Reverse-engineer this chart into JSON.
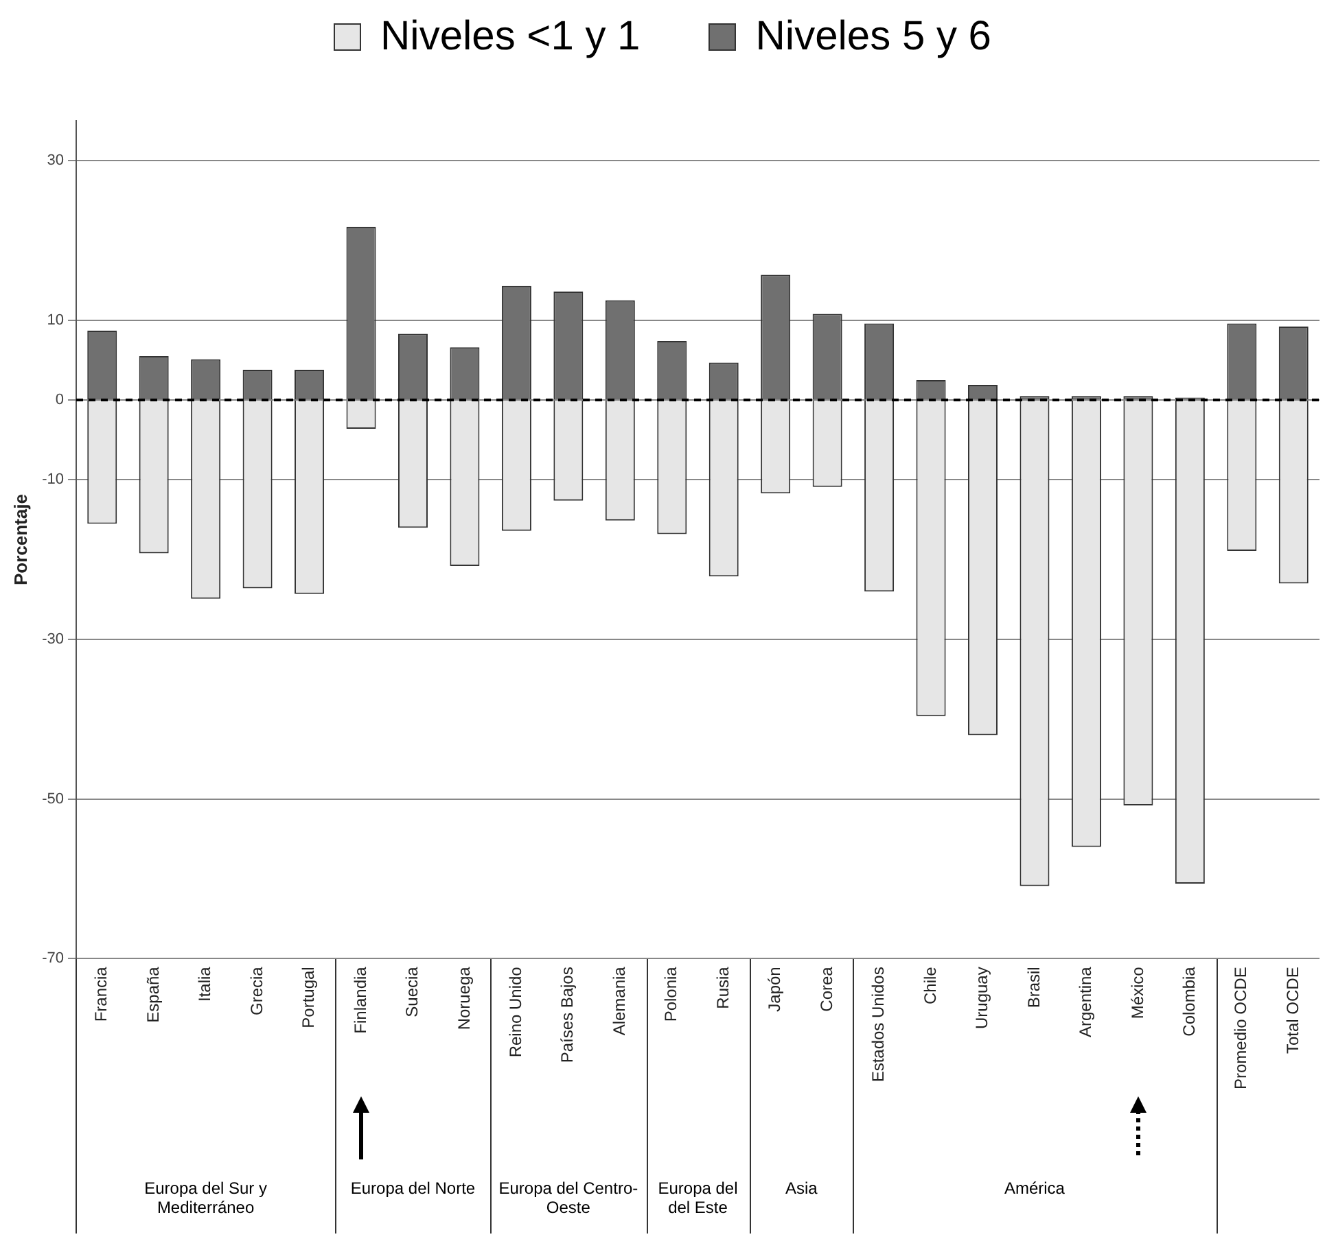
{
  "chart_data": {
    "type": "bar",
    "stacked": true,
    "ylabel": "Porcentaje",
    "categories": [
      "Francia",
      "España",
      "Italia",
      "Grecia",
      "Portugal",
      "Finlandia",
      "Suecia",
      "Noruega",
      "Reino Unido",
      "Países Bajos",
      "Alemania",
      "Polonia",
      "Rusia",
      "Japón",
      "Corea",
      "Estados Unidos",
      "Chile",
      "Uruguay",
      "Brasil",
      "Argentina",
      "México",
      "Colombia",
      "Promedio OCDE",
      "Total OCDE"
    ],
    "series": [
      {
        "name": "Niveles <1 y 1",
        "color": "#e6e6e6",
        "values": [
          -15.5,
          -19.2,
          -24.9,
          -23.6,
          -24.3,
          -3.6,
          -16,
          -20.8,
          -16.4,
          -12.6,
          -15.1,
          -16.8,
          -22.1,
          -11.7,
          -10.9,
          -24,
          -39.6,
          -42,
          -60.9,
          -56,
          -50.8,
          -60.6,
          -18.9,
          -23
        ]
      },
      {
        "name": "Niveles 5 y 6",
        "color": "#707070",
        "values": [
          8.7,
          5.5,
          5.1,
          3.8,
          3.8,
          21.7,
          8.3,
          6.6,
          14.3,
          13.6,
          12.5,
          7.4,
          4.7,
          15.7,
          10.8,
          9.6,
          2.5,
          1.9,
          0.5,
          0.5,
          0.5,
          0.3,
          9.6,
          9.2
        ]
      }
    ],
    "ylim": [
      -70,
      35
    ],
    "yticks": [
      -70,
      -50,
      -30,
      -10,
      0,
      10,
      30
    ],
    "grid": "y",
    "legend": "top",
    "ref_lines": [
      {
        "axis": "y",
        "value": 0,
        "line_style": "dashed",
        "color": "#000000"
      }
    ],
    "annotations": [
      "Europa del Sur y Mediterráneo",
      "Europa del Norte",
      "Europa del Centro-Oeste",
      "Europa del del Este",
      "Asia",
      "América"
    ]
  }
}
